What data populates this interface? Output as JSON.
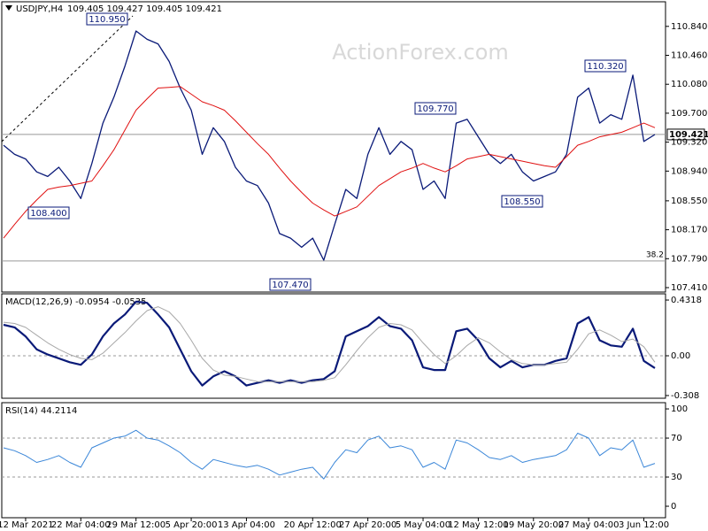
{
  "watermark": "ActionForex.com",
  "chart_data": [
    {
      "type": "line",
      "title": "USDJPY,H4",
      "subtitle": "109.405 109.427 109.405 109.421",
      "categories": [
        null,
        null,
        "12 Mar 2021",
        null,
        null,
        null,
        null,
        "22 Mar 04:00",
        null,
        null,
        null,
        null,
        "29 Mar 12:00",
        null,
        null,
        null,
        null,
        "5 Apr 20:00",
        null,
        null,
        null,
        null,
        "13 Apr 04:00",
        null,
        null,
        null,
        null,
        null,
        "20 Apr 12:00",
        null,
        null,
        null,
        null,
        "27 Apr 20:00",
        null,
        null,
        null,
        null,
        "5 May 04:00",
        null,
        null,
        null,
        null,
        "12 May 12:00",
        null,
        null,
        null,
        null,
        "19 May 20:00",
        null,
        null,
        null,
        null,
        "27 May 04:00",
        null,
        null,
        null,
        null,
        "3 Jun 12:00",
        null
      ],
      "series": [
        {
          "color": "#0a1a78",
          "width": 1.3,
          "values": [
            109.28,
            109.16,
            109.1,
            108.93,
            108.87,
            108.99,
            108.81,
            108.58,
            109.04,
            109.57,
            109.91,
            110.32,
            110.78,
            110.67,
            110.61,
            110.38,
            110.03,
            109.74,
            109.16,
            109.51,
            109.33,
            108.99,
            108.81,
            108.75,
            108.52,
            108.12,
            108.06,
            107.94,
            108.06,
            107.77,
            108.24,
            108.7,
            108.58,
            109.16,
            109.51,
            109.16,
            109.33,
            109.22,
            108.7,
            108.81,
            108.58,
            109.57,
            109.62,
            109.39,
            109.16,
            109.04,
            109.16,
            108.93,
            108.81,
            108.87,
            108.93,
            109.16,
            109.91,
            110.03,
            109.57,
            109.68,
            109.62,
            110.2,
            109.33,
            109.42
          ]
        },
        {
          "color": "#e01010",
          "width": 1,
          "values": [
            108.06,
            108.24,
            108.41,
            108.56,
            108.7,
            108.73,
            108.75,
            108.78,
            108.81,
            109.01,
            109.22,
            109.48,
            109.74,
            109.89,
            110.03,
            110.04,
            110.05,
            109.95,
            109.85,
            109.8,
            109.74,
            109.6,
            109.45,
            109.3,
            109.16,
            108.98,
            108.81,
            108.66,
            108.52,
            108.43,
            108.35,
            108.41,
            108.47,
            108.61,
            108.75,
            108.84,
            108.93,
            108.98,
            109.04,
            108.98,
            108.93,
            109.01,
            109.1,
            109.13,
            109.16,
            109.13,
            109.1,
            109.07,
            109.04,
            109.01,
            108.99,
            109.13,
            109.28,
            109.33,
            109.39,
            109.42,
            109.45,
            109.51,
            109.57,
            109.51
          ]
        }
      ],
      "ylim": [
        107.352,
        111.163
      ],
      "yticks": [
        {
          "value": 110.84,
          "label": "110.840"
        },
        {
          "value": 110.46,
          "label": "110.460"
        },
        {
          "value": 110.08,
          "label": "110.080"
        },
        {
          "value": 109.7,
          "label": "109.700"
        },
        {
          "value": 109.32,
          "label": "109.320"
        },
        {
          "value": 108.94,
          "label": "108.940"
        },
        {
          "value": 108.55,
          "label": "108.550"
        },
        {
          "value": 108.17,
          "label": "108.170"
        },
        {
          "value": 107.79,
          "label": "107.790"
        },
        {
          "value": 107.41,
          "label": "107.410"
        }
      ],
      "hlines": [
        {
          "value": 109.421,
          "label": "109.421",
          "tag": true
        },
        {
          "value": 107.76,
          "label": "38.2",
          "tag": false
        }
      ],
      "annotations": [
        "110.950",
        "108.400",
        "107.470",
        "109.770",
        "108.550",
        "110.320"
      ]
    },
    {
      "type": "line",
      "title": "MACD(12,26,9) -0.0954 -0.0535",
      "series": [
        {
          "color": "#0a1a78",
          "width": 2.2,
          "values": [
            0.24,
            0.22,
            0.15,
            0.05,
            0.01,
            -0.02,
            -0.05,
            -0.07,
            0.01,
            0.15,
            0.25,
            0.32,
            0.42,
            0.41,
            0.32,
            0.22,
            0.05,
            -0.12,
            -0.23,
            -0.16,
            -0.12,
            -0.16,
            -0.23,
            -0.21,
            -0.19,
            -0.21,
            -0.19,
            -0.21,
            -0.19,
            -0.18,
            -0.12,
            0.15,
            0.19,
            0.23,
            0.3,
            0.23,
            0.21,
            0.12,
            -0.09,
            -0.11,
            -0.11,
            0.19,
            0.21,
            0.12,
            -0.02,
            -0.09,
            -0.04,
            -0.09,
            -0.07,
            -0.07,
            -0.04,
            -0.02,
            0.25,
            0.3,
            0.12,
            0.08,
            0.07,
            0.21,
            -0.04,
            -0.095
          ]
        },
        {
          "color": "#a8a8a8",
          "width": 1,
          "values": [
            0.26,
            0.25,
            0.22,
            0.16,
            0.1,
            0.05,
            0.01,
            -0.02,
            -0.03,
            0.02,
            0.1,
            0.18,
            0.27,
            0.35,
            0.38,
            0.34,
            0.25,
            0.12,
            -0.02,
            -0.11,
            -0.15,
            -0.16,
            -0.18,
            -0.2,
            -0.2,
            -0.2,
            -0.2,
            -0.2,
            -0.2,
            -0.19,
            -0.17,
            -0.07,
            0.04,
            0.14,
            0.22,
            0.25,
            0.24,
            0.2,
            0.1,
            0.01,
            -0.06,
            0.0,
            0.08,
            0.14,
            0.1,
            0.03,
            -0.03,
            -0.06,
            -0.07,
            -0.07,
            -0.06,
            -0.05,
            0.05,
            0.17,
            0.2,
            0.16,
            0.11,
            0.13,
            0.07,
            -0.05
          ]
        }
      ],
      "ylim": [
        -0.329,
        0.48
      ],
      "yticks": [
        0.4318,
        {
          "value": 0,
          "label": "0.00"
        },
        -0.308
      ],
      "hlines": [
        {
          "value": 0
        }
      ]
    },
    {
      "type": "line",
      "title": "RSI(14) 44.2114",
      "series": [
        {
          "color": "#3a86d8",
          "width": 1,
          "values": [
            60,
            57,
            52,
            45,
            48,
            52,
            45,
            40,
            60,
            65,
            70,
            72,
            78,
            70,
            68,
            62,
            55,
            45,
            38,
            48,
            45,
            42,
            40,
            42,
            38,
            32,
            35,
            38,
            40,
            28,
            45,
            58,
            55,
            68,
            72,
            60,
            62,
            58,
            40,
            45,
            38,
            68,
            65,
            58,
            50,
            48,
            52,
            45,
            48,
            50,
            52,
            58,
            75,
            70,
            52,
            60,
            58,
            68,
            40,
            44
          ]
        }
      ],
      "ylim": [
        -11.8,
        106.4
      ],
      "yticks": [
        100,
        70,
        30,
        0
      ],
      "hlines": [
        {
          "value": 70
        },
        {
          "value": 30
        }
      ]
    }
  ]
}
